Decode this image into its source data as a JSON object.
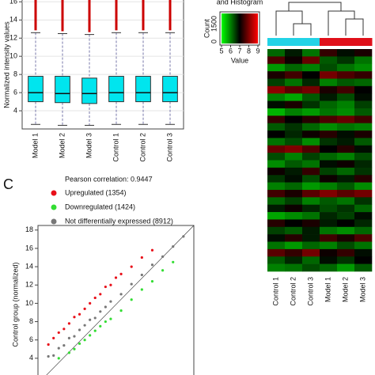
{
  "chart_data": [
    {
      "type": "box",
      "ylabel": "Normalized intensity values",
      "categories": [
        "Model 1",
        "Model 2",
        "Model 3",
        "Control 1",
        "Control 2",
        "Control 3"
      ],
      "boxes": [
        {
          "low": 2.5,
          "q1": 5.0,
          "median": 6.0,
          "q3": 7.8,
          "high": 12.6,
          "max": 16.2
        },
        {
          "low": 2.4,
          "q1": 4.9,
          "median": 5.9,
          "q3": 7.8,
          "high": 12.5,
          "max": 16.2
        },
        {
          "low": 2.4,
          "q1": 4.8,
          "median": 5.9,
          "q3": 7.6,
          "high": 12.4,
          "max": 16.2
        },
        {
          "low": 2.5,
          "q1": 5.0,
          "median": 6.0,
          "q3": 7.8,
          "high": 12.6,
          "max": 16.2
        },
        {
          "low": 2.5,
          "q1": 5.0,
          "median": 6.0,
          "q3": 7.8,
          "high": 12.6,
          "max": 16.2
        },
        {
          "low": 2.5,
          "q1": 5.0,
          "median": 6.0,
          "q3": 7.8,
          "high": 12.6,
          "max": 16.2
        }
      ],
      "color": "#00e5ee",
      "outlier_color": "#cc0000",
      "ylim": [
        2,
        16.2
      ],
      "yticks": [
        4,
        6,
        8,
        10,
        12,
        14,
        16
      ],
      "grid": true
    },
    {
      "type": "heatmap",
      "columns": [
        "Control 1",
        "Control 2",
        "Control 3",
        "Model 1",
        "Model 2",
        "Model 3"
      ],
      "group_colors": [
        "#22d3e6",
        "#22d3e6",
        "#22d3e6",
        "#e0101a",
        "#e0101a",
        "#e0101a"
      ],
      "colors": [
        "#00ff00",
        "#000000",
        "#ff0000"
      ],
      "key": {
        "title": "and Histogram",
        "ylabel": "Count",
        "yticks": [
          0,
          1500
        ],
        "xlabel": "Value",
        "xticks": [
          5,
          6,
          7,
          8,
          9
        ]
      },
      "values": [
        [
          6.2,
          6.8,
          6.1,
          7.4,
          6.9,
          7.2
        ],
        [
          7.6,
          7.1,
          7.8,
          6.3,
          6.6,
          6.1
        ],
        [
          5.8,
          6.2,
          6.0,
          6.4,
          6.1,
          5.9
        ],
        [
          7.2,
          7.5,
          7.0,
          7.9,
          7.6,
          7.4
        ],
        [
          6.5,
          6.1,
          6.7,
          6.0,
          6.3,
          6.2
        ],
        [
          8.1,
          7.7,
          7.9,
          7.2,
          7.5,
          7.0
        ],
        [
          6.0,
          5.7,
          6.3,
          6.8,
          6.4,
          6.9
        ],
        [
          6.9,
          7.2,
          6.6,
          6.2,
          6.0,
          6.5
        ],
        [
          5.6,
          6.0,
          5.8,
          6.1,
          5.9,
          6.3
        ],
        [
          7.4,
          7.0,
          7.3,
          7.6,
          7.8,
          7.5
        ],
        [
          6.3,
          6.6,
          6.2,
          5.9,
          6.1,
          6.0
        ],
        [
          7.0,
          6.7,
          7.1,
          7.3,
          6.9,
          7.2
        ],
        [
          6.1,
          6.4,
          5.9,
          6.6,
          6.8,
          6.3
        ],
        [
          7.8,
          8.0,
          7.6,
          7.0,
          7.3,
          6.9
        ],
        [
          6.4,
          6.0,
          6.5,
          6.2,
          6.0,
          6.4
        ],
        [
          5.9,
          6.3,
          6.1,
          6.9,
          7.1,
          6.7
        ],
        [
          7.1,
          6.8,
          7.4,
          6.5,
          6.2,
          6.6
        ],
        [
          6.6,
          6.9,
          6.4,
          7.1,
          6.8,
          7.3
        ],
        [
          6.0,
          6.2,
          5.8,
          6.0,
          6.3,
          5.9
        ],
        [
          7.5,
          7.2,
          7.7,
          8.0,
          7.7,
          7.9
        ],
        [
          6.2,
          6.5,
          6.0,
          6.3,
          6.1,
          6.6
        ],
        [
          6.8,
          7.1,
          6.7,
          6.4,
          6.6,
          6.2
        ],
        [
          5.7,
          5.9,
          6.1,
          6.7,
          6.5,
          6.9
        ],
        [
          7.3,
          7.0,
          7.2,
          6.8,
          7.0,
          6.7
        ],
        [
          6.5,
          6.3,
          6.8,
          6.1,
          5.9,
          6.2
        ],
        [
          6.9,
          7.3,
          6.8,
          7.5,
          7.2,
          7.6
        ],
        [
          6.1,
          5.8,
          6.2,
          6.0,
          6.4,
          6.1
        ],
        [
          7.7,
          7.4,
          7.9,
          7.1,
          7.4,
          6.9
        ],
        [
          6.3,
          6.7,
          6.2,
          6.9,
          6.6,
          7.0
        ],
        [
          6.0,
          6.1,
          6.4,
          6.2,
          5.8,
          6.3
        ]
      ]
    },
    {
      "type": "scatter",
      "panel": "C",
      "annotation": "Pearson correlation: 0.9447",
      "ylabel": "Control group (normalized)",
      "xlim": [
        3,
        18
      ],
      "ylim": [
        2,
        18.5
      ],
      "yticks": [
        4,
        6,
        8,
        10,
        12,
        14,
        16,
        18
      ],
      "series": [
        {
          "name": "Upregulated (1354)",
          "color": "#e8101a",
          "x": [
            4,
            4.5,
            5,
            5.5,
            6,
            6.5,
            7,
            7.5,
            8,
            8.5,
            9,
            9.5,
            10,
            10.5,
            11,
            12,
            13,
            14
          ],
          "y": [
            5.5,
            6.2,
            6.8,
            7.2,
            7.8,
            8.5,
            8.8,
            9.4,
            10,
            10.6,
            11,
            11.8,
            12,
            12.8,
            13.2,
            14,
            15,
            15.8
          ]
        },
        {
          "name": "Downregulated (1424)",
          "color": "#33dd33",
          "x": [
            5,
            6,
            6.5,
            7,
            7.5,
            8,
            8.5,
            9,
            9.5,
            10,
            11,
            12,
            13,
            14,
            15,
            16
          ],
          "y": [
            4,
            4.6,
            5,
            5.6,
            6,
            6.5,
            7,
            7.5,
            8,
            8.3,
            9.2,
            10.4,
            11.5,
            12.4,
            13.6,
            14.5
          ]
        },
        {
          "name": "Not differentially expressed (8912)",
          "color": "#777777",
          "x": [
            4,
            4.5,
            5,
            5.5,
            6,
            6.5,
            7,
            7.5,
            8,
            8.5,
            9,
            9.5,
            10,
            11,
            12,
            13,
            14,
            15,
            16,
            17
          ],
          "y": [
            4.2,
            4.3,
            5.1,
            5.4,
            6.2,
            6.4,
            7.1,
            7.6,
            8.2,
            8.4,
            9.1,
            9.6,
            10.2,
            11,
            12.1,
            13.1,
            14.2,
            15.1,
            16.2,
            17.3
          ]
        }
      ]
    }
  ]
}
